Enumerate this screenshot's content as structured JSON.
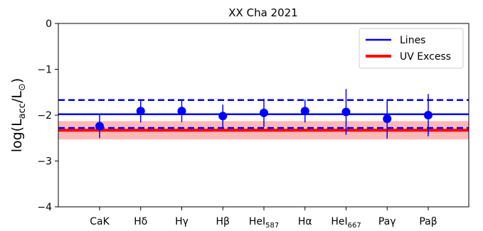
{
  "chart_data": {
    "type": "scatter",
    "title": "XX Cha 2021",
    "ylabel": "log(L_acc/L_⊙)",
    "xlabel": "",
    "ylim": [
      -4,
      0
    ],
    "yticks": [
      0,
      -1,
      -2,
      -3,
      -4
    ],
    "ytick_labels": [
      "0",
      "−1",
      "−2",
      "−3",
      "−4"
    ],
    "categories": [
      {
        "base": "CaK",
        "sub": ""
      },
      {
        "base": "Hδ",
        "sub": ""
      },
      {
        "base": "Hγ",
        "sub": ""
      },
      {
        "base": "Hβ",
        "sub": ""
      },
      {
        "base": "HeI",
        "sub": "587"
      },
      {
        "base": "Hα",
        "sub": ""
      },
      {
        "base": "HeI",
        "sub": "667"
      },
      {
        "base": "Paγ",
        "sub": ""
      },
      {
        "base": "Paβ",
        "sub": ""
      }
    ],
    "points": [
      {
        "y": -2.24,
        "err": 0.26
      },
      {
        "y": -1.91,
        "err": 0.25
      },
      {
        "y": -1.91,
        "err": 0.24
      },
      {
        "y": -2.02,
        "err": 0.25
      },
      {
        "y": -1.95,
        "err": 0.31
      },
      {
        "y": -1.91,
        "err": 0.25
      },
      {
        "y": -1.93,
        "err": 0.5
      },
      {
        "y": -2.08,
        "err": 0.43
      },
      {
        "y": -2.0,
        "err": 0.46
      }
    ],
    "lines_mean": -1.98,
    "lines_band": [
      -2.28,
      -1.67
    ],
    "uv_excess": -2.33,
    "uv_band": [
      -2.53,
      -2.13
    ],
    "legend": [
      {
        "label": "Lines",
        "color": "#0000ff"
      },
      {
        "label": "UV Excess",
        "color": "#ff0000"
      }
    ],
    "legend_position": "top-right",
    "colors": {
      "lines": "#0000ff",
      "uv": "#ff0000",
      "uv_band": "#ff9a9a",
      "points": "#0000ff"
    }
  }
}
